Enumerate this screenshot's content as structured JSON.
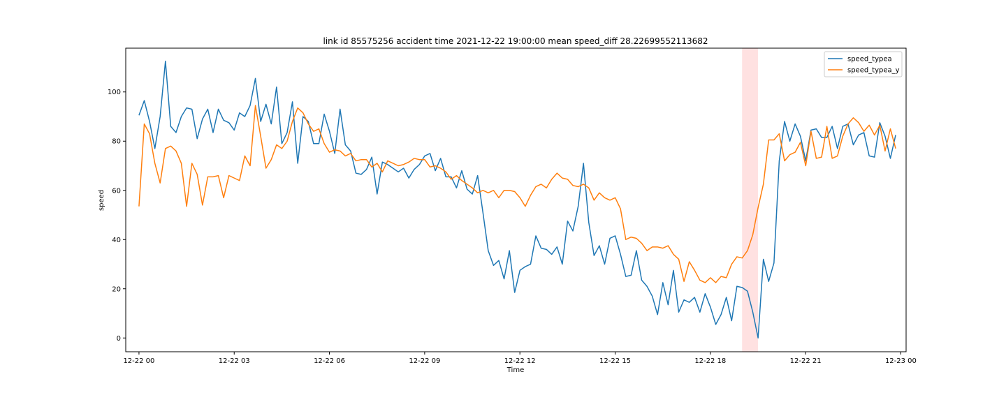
{
  "chart_data": {
    "type": "line",
    "title": "link id 85575256 accident time 2021-12-22 19:00:00 mean speed_diff 28.22699552113682",
    "xlabel": "Time",
    "ylabel": "speed",
    "xlim": [
      -0.4167,
      24.1667
    ],
    "ylim": [
      -5.6,
      117.8
    ],
    "x_ticks": [
      0,
      3,
      6,
      9,
      12,
      15,
      18,
      21,
      24
    ],
    "x_tick_labels": [
      "12-22 00",
      "12-22 03",
      "12-22 06",
      "12-22 09",
      "12-22 12",
      "12-22 15",
      "12-22 18",
      "12-22 21",
      "12-23 00"
    ],
    "y_ticks": [
      0,
      20,
      40,
      60,
      80,
      100
    ],
    "y_tick_labels": [
      "0",
      "20",
      "40",
      "60",
      "80",
      "100"
    ],
    "x_step_hours": 0.1667,
    "accident_span": {
      "start": 19,
      "end": 19.5,
      "color": "#ffd4d4"
    },
    "legend_position": "top-right",
    "series": [
      {
        "name": "speed_typea",
        "color": "#1f77b4",
        "values": [
          90.5,
          96.5,
          88,
          77,
          90,
          112.5,
          86,
          83.5,
          90,
          93.5,
          93,
          81,
          89,
          93,
          83.5,
          93,
          88.5,
          87.5,
          84.5,
          91.5,
          90,
          94.5,
          105.5,
          88,
          95,
          87,
          102,
          79,
          83.5,
          96,
          71,
          90,
          88,
          79,
          79,
          91,
          84,
          75,
          93,
          78.5,
          76,
          67,
          66.5,
          68.5,
          73.5,
          58.5,
          71.5,
          70.5,
          69,
          67.5,
          69,
          65,
          68.5,
          70.5,
          74,
          75,
          68,
          73,
          65.5,
          65.5,
          61,
          68,
          60.5,
          58.5,
          66,
          51,
          35.5,
          29.5,
          31.5,
          24,
          35.5,
          18.5,
          27.5,
          29,
          30,
          41.5,
          36.5,
          36,
          34,
          37,
          30,
          47.5,
          43.5,
          53.5,
          71,
          47,
          33.5,
          37.5,
          30,
          40.5,
          41.5,
          34,
          25,
          25.5,
          35.5,
          23.5,
          21,
          17,
          9.5,
          22.5,
          13.5,
          27.5,
          10.5,
          15.5,
          14.5,
          16.5,
          10.5,
          18,
          12.5,
          5.5,
          9.5,
          16.5,
          7,
          21,
          20.5,
          19,
          10.5,
          0,
          32,
          23,
          30.5,
          72,
          88,
          80,
          87,
          82,
          72,
          84.5,
          85,
          81.5,
          81.5,
          86,
          77,
          86,
          87,
          78.5,
          82.5,
          83.5,
          74,
          73.5,
          87.5,
          82,
          73,
          82.5
        ]
      },
      {
        "name": "speed_typea_y",
        "color": "#ff7f0e",
        "values": [
          53.5,
          87,
          83,
          71,
          63,
          77,
          78,
          76,
          71,
          53.5,
          71,
          66.5,
          54,
          65.5,
          65.5,
          66,
          57,
          66,
          65,
          64,
          74,
          70,
          94.5,
          82,
          69,
          72.5,
          78.5,
          77,
          80,
          88,
          93.5,
          91.5,
          87,
          84,
          85,
          79,
          75.5,
          76.5,
          76,
          74,
          75,
          72,
          72.5,
          72.5,
          69.5,
          71,
          67.5,
          72,
          71,
          70,
          70.5,
          71.5,
          73,
          72.5,
          72.5,
          69.5,
          70,
          69,
          67.5,
          64.5,
          66,
          64,
          62.5,
          61,
          59,
          60,
          59,
          60,
          57,
          60,
          60,
          59.5,
          57,
          53.5,
          58,
          61.5,
          62.5,
          61,
          64.5,
          67,
          65,
          64.5,
          62,
          61.5,
          62.5,
          61,
          56,
          59,
          57,
          56,
          57,
          52.5,
          40,
          41,
          40.5,
          38.5,
          35.5,
          37,
          37,
          36.5,
          37.5,
          34,
          32,
          23,
          31,
          27.5,
          23.5,
          22.5,
          24.5,
          22.5,
          25,
          24.5,
          30,
          33,
          32.5,
          35.5,
          42,
          53,
          62.5,
          80.5,
          80.5,
          83,
          72,
          74.5,
          75.5,
          79.5,
          70,
          84,
          73,
          73.5,
          86,
          73,
          74,
          82,
          87,
          89.5,
          87.5,
          84,
          86.5,
          82.5,
          86.5,
          76,
          85,
          77
        ]
      }
    ]
  }
}
